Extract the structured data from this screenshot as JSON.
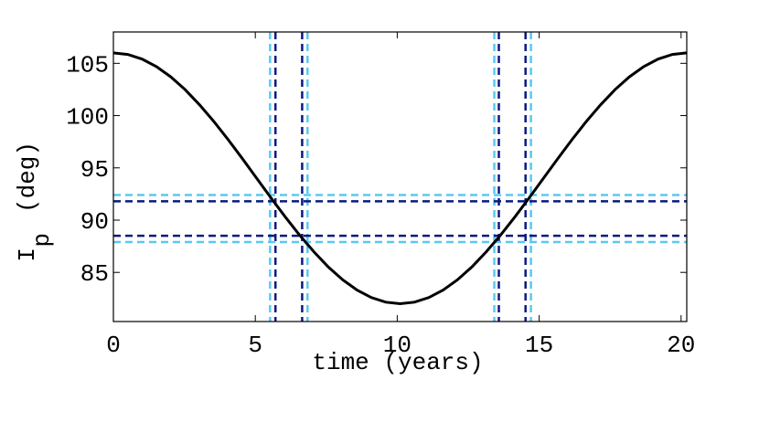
{
  "chart_data": {
    "type": "line",
    "x_label": "time (years)",
    "y_label": {
      "main": "I",
      "sub": "p",
      "unit": "(deg)"
    },
    "x": [
      0,
      0.505,
      1.01,
      1.515,
      2.02,
      2.525,
      3.03,
      3.535,
      4.04,
      4.545,
      5.05,
      5.555,
      6.06,
      6.565,
      7.07,
      7.575,
      8.08,
      8.585,
      9.09,
      9.595,
      10.1,
      10.605,
      11.11,
      11.615,
      12.12,
      12.625,
      13.13,
      13.635,
      14.14,
      14.645,
      15.15,
      15.655,
      16.16,
      16.665,
      17.17,
      17.675,
      18.18,
      18.685,
      19.19,
      19.695,
      20.2
    ],
    "series": [
      {
        "color": "#000000",
        "values": [
          106,
          105.85,
          105.41,
          104.69,
          103.71,
          102.49,
          101.05,
          99.45,
          97.71,
          95.88,
          94,
          92.12,
          90.29,
          88.55,
          86.95,
          85.51,
          84.29,
          83.31,
          82.59,
          82.15,
          82,
          82.15,
          82.59,
          83.31,
          84.29,
          85.51,
          86.95,
          88.55,
          90.29,
          92.12,
          94,
          95.88,
          97.71,
          99.45,
          101.05,
          102.49,
          103.71,
          104.69,
          105.41,
          105.85,
          106
        ]
      }
    ],
    "vlines": [
      {
        "value": 5.52,
        "color": "#5bc8f0"
      },
      {
        "value": 5.71,
        "color": "#0a1a80"
      },
      {
        "value": 6.65,
        "color": "#0a1a80"
      },
      {
        "value": 6.84,
        "color": "#5bc8f0"
      },
      {
        "value": 13.42,
        "color": "#5bc8f0"
      },
      {
        "value": 13.58,
        "color": "#0a1a80"
      },
      {
        "value": 14.52,
        "color": "#0a1a80"
      },
      {
        "value": 14.71,
        "color": "#5bc8f0"
      }
    ],
    "hlines": [
      {
        "value": 92.4,
        "color": "#5bc8f0"
      },
      {
        "value": 91.8,
        "color": "#0a1a80"
      },
      {
        "value": 88.5,
        "color": "#0a1a80"
      },
      {
        "value": 87.9,
        "color": "#5bc8f0"
      }
    ],
    "xlim": [
      0,
      20.2
    ],
    "ylim": [
      80.3,
      108
    ],
    "xticks": [
      0,
      5,
      10,
      15,
      20
    ],
    "yticks": [
      85,
      90,
      95,
      100,
      105
    ]
  }
}
